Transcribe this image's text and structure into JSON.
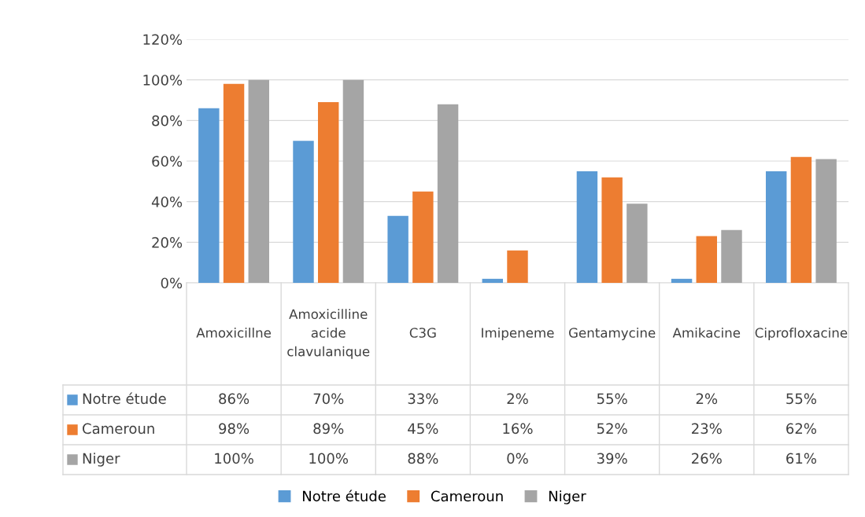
{
  "chart_data": {
    "type": "bar",
    "categories": [
      "Amoxicillne",
      "Amoxicilline acide clavulanique",
      "C3G",
      "Imipeneme",
      "Gentamycine",
      "Amikacine",
      "Ciprofloxacine"
    ],
    "series": [
      {
        "name": "Notre étude",
        "color": "#5b9bd5",
        "values": [
          86,
          70,
          33,
          2,
          55,
          2,
          55
        ],
        "value_labels": [
          "86%",
          "70%",
          "33%",
          "2%",
          "55%",
          "2%",
          "55%"
        ]
      },
      {
        "name": "Cameroun",
        "color": "#ed7d31",
        "values": [
          98,
          89,
          45,
          16,
          52,
          23,
          62
        ],
        "value_labels": [
          "98%",
          "89%",
          "45%",
          "16%",
          "52%",
          "23%",
          "62%"
        ]
      },
      {
        "name": "Niger",
        "color": "#a5a5a5",
        "values": [
          100,
          100,
          88,
          0,
          39,
          26,
          61
        ],
        "value_labels": [
          "100%",
          "100%",
          "88%",
          "0%",
          "39%",
          "26%",
          "61%"
        ]
      }
    ],
    "ylim": [
      0,
      120
    ],
    "yticks": [
      {
        "value": 0,
        "label": "0%"
      },
      {
        "value": 20,
        "label": "20%"
      },
      {
        "value": 40,
        "label": "40%"
      },
      {
        "value": 60,
        "label": "60%"
      },
      {
        "value": 80,
        "label": "80%"
      },
      {
        "value": 100,
        "label": "100%"
      },
      {
        "value": 120,
        "label": "120%"
      }
    ],
    "grid": "y",
    "legend": "bottom"
  }
}
